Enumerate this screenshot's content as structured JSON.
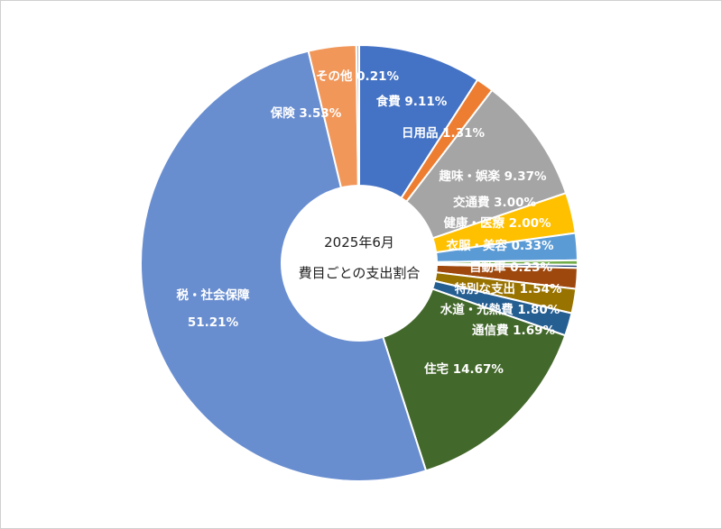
{
  "chart_data": {
    "type": "pie",
    "subtype": "donut",
    "center_title_line1": "2025年6月",
    "center_title_line2": "費目ごとの支出割合",
    "slices": [
      {
        "label": "食費",
        "value": 9.11,
        "display": "食費 9.11%",
        "color": "#4472C4"
      },
      {
        "label": "日用品",
        "value": 1.31,
        "display": "日用品 1.31%",
        "color": "#ED7D31"
      },
      {
        "label": "趣味・娯楽",
        "value": 9.37,
        "display": "趣味・娯楽 9.37%",
        "color": "#A5A5A5"
      },
      {
        "label": "交通費",
        "value": 3.0,
        "display": "交通費 3.00%",
        "color": "#FFC000"
      },
      {
        "label": "健康・医療",
        "value": 2.0,
        "display": "健康・医療 2.00%",
        "color": "#5B9BD5"
      },
      {
        "label": "衣服・美容",
        "value": 0.33,
        "display": "衣服・美容 0.33%",
        "color": "#70AD47"
      },
      {
        "label": "自動車",
        "value": 0.23,
        "display": "自動車 0.23%",
        "color": "#264478"
      },
      {
        "label": "特別な支出",
        "value": 1.54,
        "display": "特別な支出 1.54%",
        "color": "#9E480E"
      },
      {
        "label": "水道・光熱費",
        "value": 1.8,
        "display": "水道・光熱費 1.80%",
        "color": "#997300"
      },
      {
        "label": "通信費",
        "value": 1.69,
        "display": "通信費 1.69%",
        "color": "#255E91"
      },
      {
        "label": "住宅",
        "value": 14.67,
        "display": "住宅 14.67%",
        "color": "#43682B"
      },
      {
        "label": "税・社会保障",
        "value": 51.21,
        "display": "税・社会保障\n51.21%",
        "color": "#698ED0"
      },
      {
        "label": "保険",
        "value": 3.53,
        "display": "保険 3.53%",
        "color": "#F1975A"
      },
      {
        "label": "その他",
        "value": 0.21,
        "display": "その他 0.21%",
        "color": "#B7B7B7"
      }
    ]
  }
}
